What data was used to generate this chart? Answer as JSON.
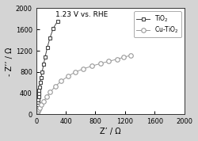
{
  "title": "1.23 V vs. RHE",
  "xlabel": "Z’ / Ω",
  "ylabel": "- Z’’ / Ω",
  "xlim": [
    0,
    2000
  ],
  "ylim": [
    0,
    2000
  ],
  "xticks": [
    0,
    400,
    800,
    1200,
    1600,
    2000
  ],
  "yticks": [
    0,
    400,
    800,
    1200,
    1600,
    2000
  ],
  "tio2_x": [
    5,
    8,
    10,
    12,
    15,
    18,
    20,
    22,
    25,
    28,
    30,
    35,
    40,
    45,
    55,
    65,
    80,
    100,
    120,
    150,
    185,
    230,
    290
  ],
  "tio2_y": [
    10,
    20,
    35,
    55,
    80,
    110,
    145,
    185,
    230,
    280,
    330,
    390,
    450,
    520,
    600,
    690,
    800,
    940,
    1080,
    1260,
    1440,
    1620,
    1760
  ],
  "cutio2_x": [
    5,
    8,
    12,
    18,
    25,
    35,
    50,
    70,
    100,
    140,
    190,
    260,
    340,
    430,
    530,
    640,
    750,
    870,
    980,
    1090,
    1180,
    1280
  ],
  "cutio2_y": [
    5,
    12,
    22,
    38,
    60,
    90,
    130,
    180,
    245,
    330,
    420,
    530,
    630,
    720,
    800,
    860,
    910,
    960,
    1000,
    1040,
    1075,
    1115
  ],
  "tio2_color": "#444444",
  "cutio2_color": "#999999",
  "plot_bg": "#ffffff",
  "fig_bg": "#d4d4d4",
  "legend_tio2": "TiO$_2$",
  "legend_cutio2": "Cu-TiO$_2$"
}
